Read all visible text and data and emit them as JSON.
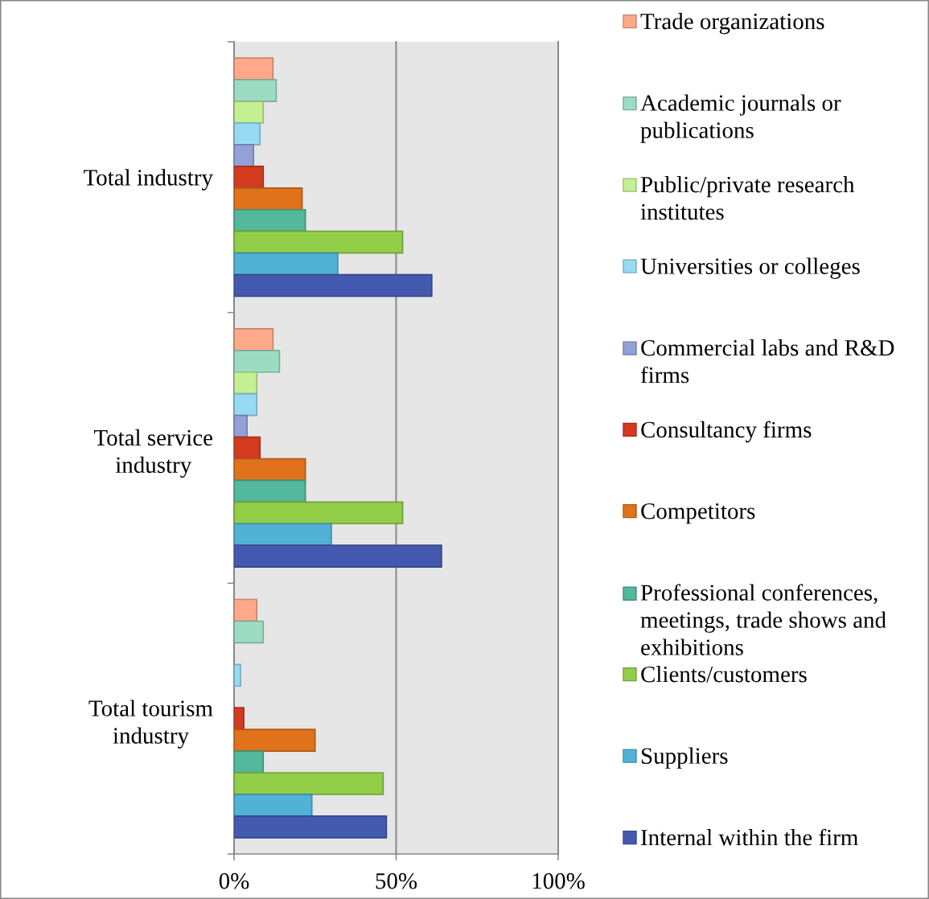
{
  "chart_data": {
    "type": "bar",
    "orientation": "horizontal",
    "categories": [
      "Total industry",
      "Total service industry",
      "Total tourism industry"
    ],
    "series": [
      {
        "name": "Trade organizations",
        "color": "#ffa98a",
        "values": [
          12,
          12,
          7
        ]
      },
      {
        "name": "Academic journals or publications",
        "color": "#9cdcc4",
        "values": [
          13,
          14,
          9
        ]
      },
      {
        "name": "Public/private research institutes",
        "color": "#c4f094",
        "values": [
          9,
          7,
          null
        ]
      },
      {
        "name": "Universities or colleges",
        "color": "#98daf4",
        "values": [
          8,
          7,
          2
        ]
      },
      {
        "name": "Commercial labs and R&D firms",
        "color": "#94a0d8",
        "values": [
          6,
          4,
          null
        ]
      },
      {
        "name": "Consultancy firms",
        "color": "#d43a20",
        "values": [
          9,
          8,
          3
        ]
      },
      {
        "name": "Competitors",
        "color": "#e0721c",
        "values": [
          21,
          22,
          25
        ]
      },
      {
        "name": "Professional conferences, meetings, trade shows and exhibitions",
        "color": "#54b89c",
        "values": [
          22,
          22,
          9
        ]
      },
      {
        "name": "Clients/customers",
        "color": "#92ce48",
        "values": [
          52,
          52,
          46
        ]
      },
      {
        "name": "Suppliers",
        "color": "#52b2d6",
        "values": [
          32,
          30,
          24
        ]
      },
      {
        "name": "Internal within the firm",
        "color": "#445ab0",
        "values": [
          61,
          64,
          47
        ]
      }
    ],
    "xlim": [
      0,
      100
    ],
    "xticks": [
      {
        "value": 0,
        "label": "0%"
      },
      {
        "value": 50,
        "label": "50%"
      },
      {
        "value": 100,
        "label": "100%"
      }
    ],
    "grid": "x",
    "legend": "right"
  }
}
